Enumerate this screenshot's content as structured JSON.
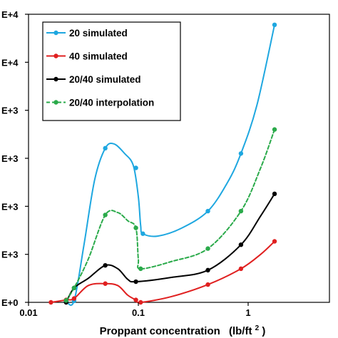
{
  "chart_data": {
    "type": "line",
    "xlabel": "Proppant concentration",
    "xlabel_unit": "(lb/ft",
    "xlabel_unit_sup": "2",
    "xlabel_unit_close": ")",
    "xscale": "log",
    "xlim": [
      0.01,
      5.5
    ],
    "ylim": [
      0,
      6
    ],
    "x_ticks": [
      {
        "value": 0.01,
        "label": "0.01"
      },
      {
        "value": 0.1,
        "label": "0.1"
      },
      {
        "value": 1,
        "label": "1"
      }
    ],
    "y_ticks": [
      {
        "value": 0,
        "label": "E+0"
      },
      {
        "value": 1,
        "label": "E+3"
      },
      {
        "value": 2,
        "label": "E+3"
      },
      {
        "value": 3,
        "label": "E+3"
      },
      {
        "value": 4,
        "label": "E+3"
      },
      {
        "value": 5,
        "label": "E+4"
      },
      {
        "value": 6,
        "label": "E+4"
      }
    ],
    "grid": false,
    "legend_position": "top-left",
    "series": [
      {
        "name": "20 simulated",
        "color": "#1ea7e0",
        "dash": "solid",
        "markers": [
          {
            "x": 0.022,
            "y": 0.02
          },
          {
            "x": 0.026,
            "y": 0.03
          },
          {
            "x": 0.05,
            "y": 3.21
          },
          {
            "x": 0.095,
            "y": 2.8
          },
          {
            "x": 0.11,
            "y": 1.43
          },
          {
            "x": 0.43,
            "y": 1.9
          },
          {
            "x": 0.86,
            "y": 3.1
          },
          {
            "x": 1.74,
            "y": 5.78
          }
        ],
        "curve": [
          {
            "x": 0.022,
            "y": 0.02
          },
          {
            "x": 0.026,
            "y": 0.03
          },
          {
            "x": 0.032,
            "y": 1.2
          },
          {
            "x": 0.04,
            "y": 2.55
          },
          {
            "x": 0.05,
            "y": 3.21
          },
          {
            "x": 0.06,
            "y": 3.3
          },
          {
            "x": 0.075,
            "y": 3.1
          },
          {
            "x": 0.09,
            "y": 2.85
          },
          {
            "x": 0.1,
            "y": 2.2
          },
          {
            "x": 0.105,
            "y": 1.6
          },
          {
            "x": 0.11,
            "y": 1.43
          },
          {
            "x": 0.15,
            "y": 1.38
          },
          {
            "x": 0.25,
            "y": 1.55
          },
          {
            "x": 0.43,
            "y": 1.9
          },
          {
            "x": 0.65,
            "y": 2.5
          },
          {
            "x": 0.86,
            "y": 3.1
          },
          {
            "x": 1.2,
            "y": 4.1
          },
          {
            "x": 1.74,
            "y": 5.78
          }
        ]
      },
      {
        "name": "40 simulated",
        "color": "#e02020",
        "dash": "solid",
        "markers": [
          {
            "x": 0.016,
            "y": 0.0
          },
          {
            "x": 0.022,
            "y": 0.05
          },
          {
            "x": 0.026,
            "y": 0.08
          },
          {
            "x": 0.05,
            "y": 0.39
          },
          {
            "x": 0.095,
            "y": 0.05
          },
          {
            "x": 0.105,
            "y": 0.0
          },
          {
            "x": 0.43,
            "y": 0.37
          },
          {
            "x": 0.86,
            "y": 0.7
          },
          {
            "x": 1.74,
            "y": 1.27
          }
        ],
        "curve": [
          {
            "x": 0.016,
            "y": 0.0
          },
          {
            "x": 0.022,
            "y": 0.05
          },
          {
            "x": 0.026,
            "y": 0.08
          },
          {
            "x": 0.035,
            "y": 0.35
          },
          {
            "x": 0.05,
            "y": 0.39
          },
          {
            "x": 0.065,
            "y": 0.35
          },
          {
            "x": 0.08,
            "y": 0.15
          },
          {
            "x": 0.095,
            "y": 0.05
          },
          {
            "x": 0.105,
            "y": 0.0
          },
          {
            "x": 0.2,
            "y": 0.12
          },
          {
            "x": 0.43,
            "y": 0.37
          },
          {
            "x": 0.86,
            "y": 0.7
          },
          {
            "x": 1.3,
            "y": 1.0
          },
          {
            "x": 1.74,
            "y": 1.27
          }
        ]
      },
      {
        "name": "20/40 simulated",
        "color": "#000000",
        "dash": "solid",
        "markers": [
          {
            "x": 0.022,
            "y": 0.0
          },
          {
            "x": 0.026,
            "y": 0.3
          },
          {
            "x": 0.05,
            "y": 0.77
          },
          {
            "x": 0.095,
            "y": 0.43
          },
          {
            "x": 0.43,
            "y": 0.67
          },
          {
            "x": 0.86,
            "y": 1.2
          },
          {
            "x": 1.74,
            "y": 2.26
          }
        ],
        "curve": [
          {
            "x": 0.022,
            "y": 0.0
          },
          {
            "x": 0.026,
            "y": 0.3
          },
          {
            "x": 0.035,
            "y": 0.5
          },
          {
            "x": 0.05,
            "y": 0.77
          },
          {
            "x": 0.065,
            "y": 0.7
          },
          {
            "x": 0.08,
            "y": 0.48
          },
          {
            "x": 0.095,
            "y": 0.43
          },
          {
            "x": 0.2,
            "y": 0.52
          },
          {
            "x": 0.43,
            "y": 0.67
          },
          {
            "x": 0.86,
            "y": 1.2
          },
          {
            "x": 1.3,
            "y": 1.8
          },
          {
            "x": 1.74,
            "y": 2.26
          }
        ]
      },
      {
        "name": "20/40 interpolation",
        "color": "#2aaa4a",
        "dash": "dashed",
        "markers": [
          {
            "x": 0.022,
            "y": 0.04
          },
          {
            "x": 0.026,
            "y": 0.3
          },
          {
            "x": 0.05,
            "y": 1.82
          },
          {
            "x": 0.095,
            "y": 1.55
          },
          {
            "x": 0.105,
            "y": 0.7
          },
          {
            "x": 0.43,
            "y": 1.12
          },
          {
            "x": 0.86,
            "y": 1.9
          },
          {
            "x": 1.74,
            "y": 3.6
          }
        ],
        "curve": [
          {
            "x": 0.022,
            "y": 0.04
          },
          {
            "x": 0.026,
            "y": 0.3
          },
          {
            "x": 0.035,
            "y": 0.9
          },
          {
            "x": 0.05,
            "y": 1.82
          },
          {
            "x": 0.065,
            "y": 1.87
          },
          {
            "x": 0.08,
            "y": 1.7
          },
          {
            "x": 0.095,
            "y": 1.55
          },
          {
            "x": 0.1,
            "y": 0.9
          },
          {
            "x": 0.105,
            "y": 0.7
          },
          {
            "x": 0.2,
            "y": 0.85
          },
          {
            "x": 0.43,
            "y": 1.12
          },
          {
            "x": 0.86,
            "y": 1.9
          },
          {
            "x": 1.3,
            "y": 2.8
          },
          {
            "x": 1.74,
            "y": 3.6
          }
        ]
      }
    ]
  }
}
